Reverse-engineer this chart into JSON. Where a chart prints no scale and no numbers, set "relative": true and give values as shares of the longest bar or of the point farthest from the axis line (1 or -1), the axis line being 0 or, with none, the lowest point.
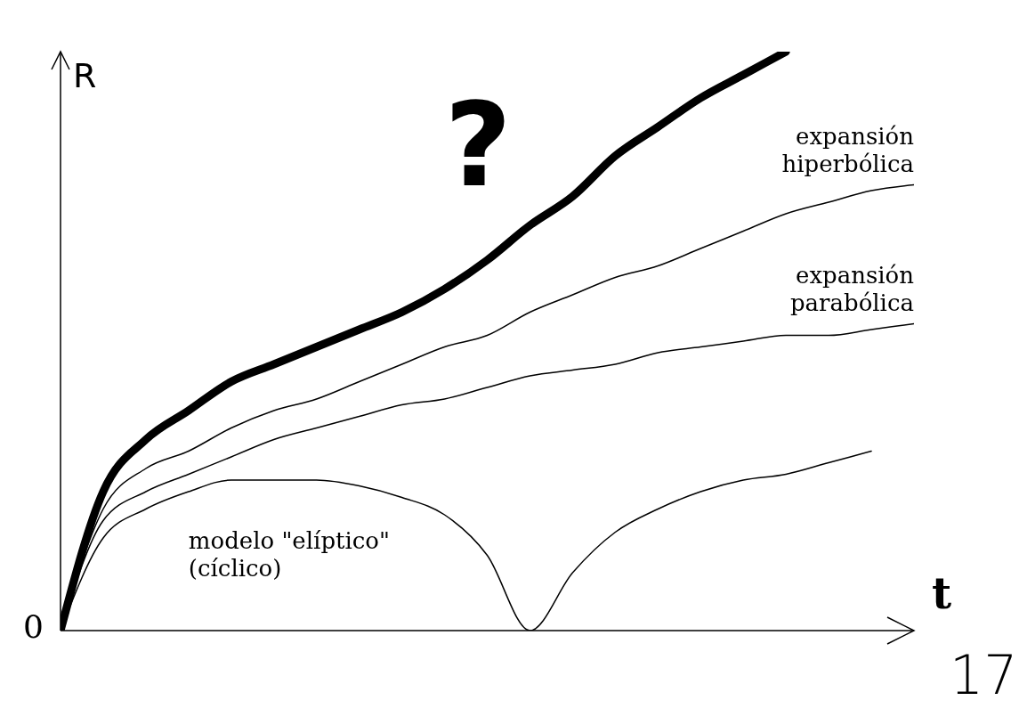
{
  "chart_data": {
    "type": "line",
    "relative": true,
    "xlabel": "t",
    "ylabel": "R",
    "categories": [
      null,
      null,
      null,
      null,
      null,
      null,
      null,
      null,
      null,
      null,
      null,
      null,
      null,
      null,
      null,
      null,
      null,
      null,
      null,
      null,
      null
    ],
    "series": [
      {
        "color": "#000000",
        "values": [
          0,
          0.24,
          0.33,
          0.38,
          0.43,
          0.46,
          0.49,
          0.52,
          0.55,
          0.59,
          0.64,
          0.7,
          0.75,
          0.82,
          0.87,
          0.92,
          0.96,
          1.0,
          null,
          null,
          null
        ]
      },
      {
        "name": "expansión hiperbólica",
        "color": "#000000",
        "values": [
          0,
          0.21,
          0.28,
          0.31,
          0.35,
          0.38,
          0.4,
          0.43,
          0.46,
          0.49,
          0.51,
          0.55,
          0.58,
          0.61,
          0.63,
          0.66,
          0.69,
          0.72,
          0.74,
          0.76,
          0.77
        ]
      },
      {
        "name": "expansión parabólica",
        "color": "#000000",
        "values": [
          0,
          0.19,
          0.24,
          0.27,
          0.3,
          0.33,
          0.35,
          0.37,
          0.39,
          0.4,
          0.42,
          0.44,
          0.45,
          0.46,
          0.48,
          0.49,
          0.5,
          0.51,
          0.51,
          0.52,
          0.53
        ]
      },
      {
        "name": "modelo \"elíptico\" (cíclico)",
        "color": "#000000",
        "values": [
          0,
          0.16,
          0.21,
          0.24,
          0.26,
          0.26,
          0.26,
          0.25,
          0.23,
          0.2,
          0.13,
          0,
          0.1,
          0.17,
          0.21,
          0.24,
          0.26,
          0.27,
          0.29,
          0.31,
          null
        ]
      }
    ],
    "annotations": [
      "?",
      "0",
      "17"
    ],
    "grid": false,
    "legend": false,
    "marker": "none",
    "line_style": "solid"
  }
}
